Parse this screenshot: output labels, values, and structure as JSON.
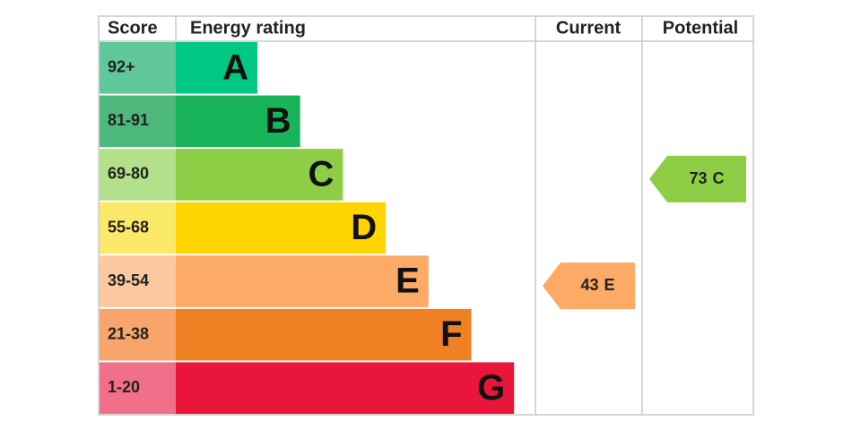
{
  "header": {
    "score": "Score",
    "rating": "Energy rating",
    "current": "Current",
    "potential": "Potential"
  },
  "bands": [
    {
      "score": "92+",
      "letter": "A",
      "score_color": "#5fc79a",
      "color": "#00c781"
    },
    {
      "score": "81-91",
      "letter": "B",
      "score_color": "#4cb87a",
      "color": "#19b459"
    },
    {
      "score": "69-80",
      "letter": "C",
      "score_color": "#b3e08a",
      "color": "#8dce46"
    },
    {
      "score": "55-68",
      "letter": "D",
      "score_color": "#fbe96a",
      "color": "#ffd500"
    },
    {
      "score": "39-54",
      "letter": "E",
      "score_color": "#fcc8a0",
      "color": "#fcaa65"
    },
    {
      "score": "21-38",
      "letter": "F",
      "score_color": "#f7a56a",
      "color": "#ef8023"
    },
    {
      "score": "1-20",
      "letter": "G",
      "score_color": "#f0708a",
      "color": "#e9153b"
    }
  ],
  "current": {
    "score": 43,
    "rating": "E"
  },
  "potential": {
    "score": 73,
    "rating": "C"
  }
}
